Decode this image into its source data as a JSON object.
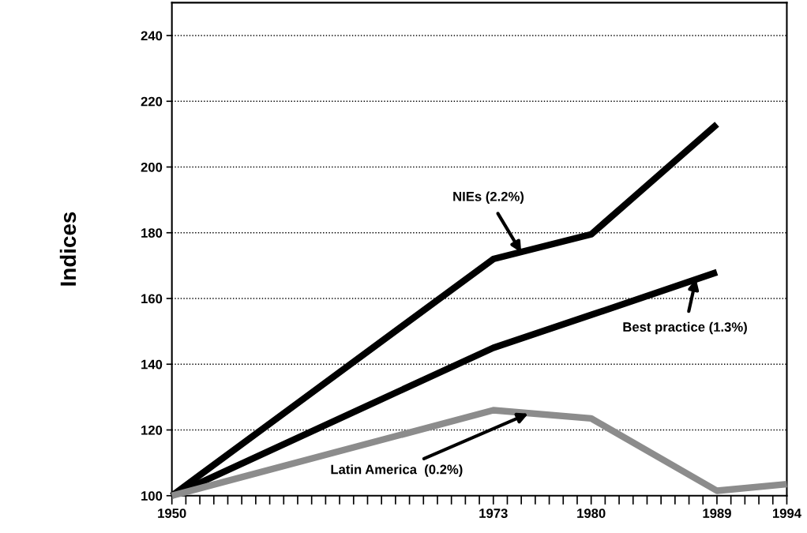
{
  "chart_data": {
    "type": "line",
    "ylabel": "Indices",
    "x": [
      1950,
      1973,
      1980,
      1989
    ],
    "series": [
      {
        "color": "#000000",
        "values": [
          100,
          172,
          179.5,
          213
        ]
      },
      {
        "color": "#000000",
        "values": [
          100,
          145,
          155,
          168
        ]
      },
      {
        "color": "#8c8c8c",
        "x": [
          1950,
          1973,
          1980,
          1989,
          1994
        ],
        "values": [
          100,
          126,
          123.5,
          101.5,
          103.5
        ]
      }
    ],
    "annotations": [
      {
        "text": "NIEs (2.2%)",
        "x": 1975,
        "y": 174
      },
      {
        "text": "Best practice (1.3%)",
        "x": 1987.5,
        "y": 166
      },
      {
        "text": "Latin America  (0.2%)",
        "x": 1975.5,
        "y": 125
      }
    ],
    "xlim": [
      1950,
      1994
    ],
    "xticks": [
      1950,
      1973,
      1980,
      1989,
      1994
    ],
    "ylim": [
      100,
      250
    ],
    "yticks": [
      100,
      120,
      140,
      160,
      180,
      200,
      220,
      240
    ],
    "grid": "y",
    "legend": false,
    "marker": "none",
    "line_style": "solid"
  }
}
